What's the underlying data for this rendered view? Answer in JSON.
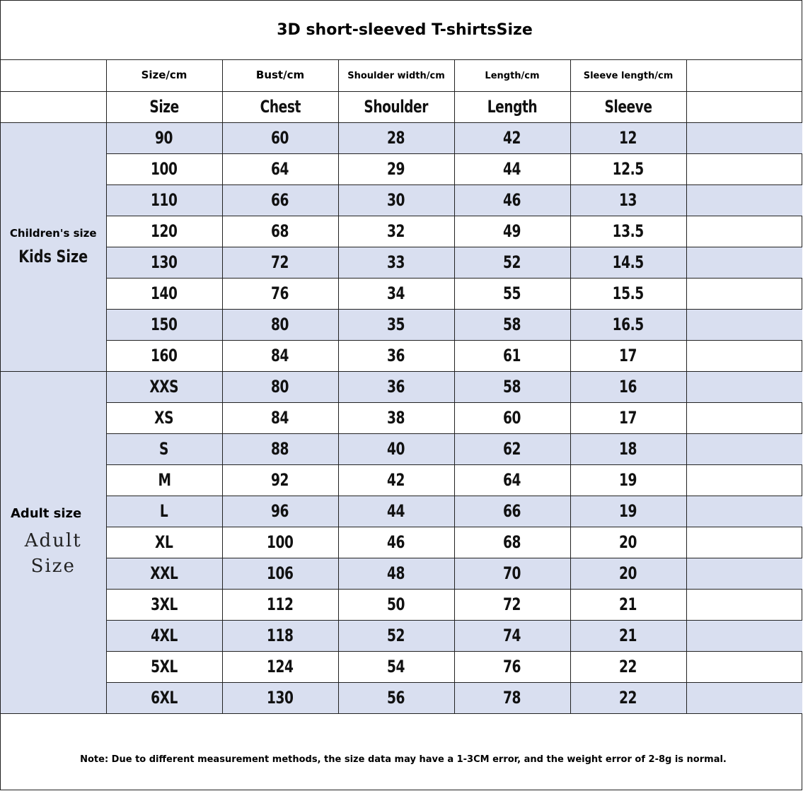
{
  "title": "3D short-sleeved T-shirtsSize",
  "headers_top": [
    "Size/cm",
    "Bust/cm",
    "Shoulder width/cm",
    "Length/cm",
    "Sleeve length/cm"
  ],
  "headers_bottom": [
    "Size",
    "Chest",
    "Shoulder",
    "Length",
    "Sleeve"
  ],
  "groups": {
    "kids": {
      "label_top": "Children's size",
      "label_bottom": "Kids Size"
    },
    "adult": {
      "label_top": "Adult size",
      "label_bottom_line1": "Adult",
      "label_bottom_line2": "Size"
    }
  },
  "rows": [
    [
      "90",
      "60",
      "28",
      "42",
      "12"
    ],
    [
      "100",
      "64",
      "29",
      "44",
      "12.5"
    ],
    [
      "110",
      "66",
      "30",
      "46",
      "13"
    ],
    [
      "120",
      "68",
      "32",
      "49",
      "13.5"
    ],
    [
      "130",
      "72",
      "33",
      "52",
      "14.5"
    ],
    [
      "140",
      "76",
      "34",
      "55",
      "15.5"
    ],
    [
      "150",
      "80",
      "35",
      "58",
      "16.5"
    ],
    [
      "160",
      "84",
      "36",
      "61",
      "17"
    ],
    [
      "XXS",
      "80",
      "36",
      "58",
      "16"
    ],
    [
      "XS",
      "84",
      "38",
      "60",
      "17"
    ],
    [
      "S",
      "88",
      "40",
      "62",
      "18"
    ],
    [
      "M",
      "92",
      "42",
      "64",
      "19"
    ],
    [
      "L",
      "96",
      "44",
      "66",
      "19"
    ],
    [
      "XL",
      "100",
      "46",
      "68",
      "20"
    ],
    [
      "XXL",
      "106",
      "48",
      "70",
      "20"
    ],
    [
      "3XL",
      "112",
      "50",
      "72",
      "21"
    ],
    [
      "4XL",
      "118",
      "52",
      "74",
      "21"
    ],
    [
      "5XL",
      "124",
      "54",
      "76",
      "22"
    ],
    [
      "6XL",
      "130",
      "56",
      "78",
      "22"
    ]
  ],
  "note": "Note: Due to different measurement methods, the size data may have a 1-3CM error, and the weight error of 2-8g is normal.",
  "colors": {
    "shade": "#d9dff0",
    "border": "#222222"
  }
}
